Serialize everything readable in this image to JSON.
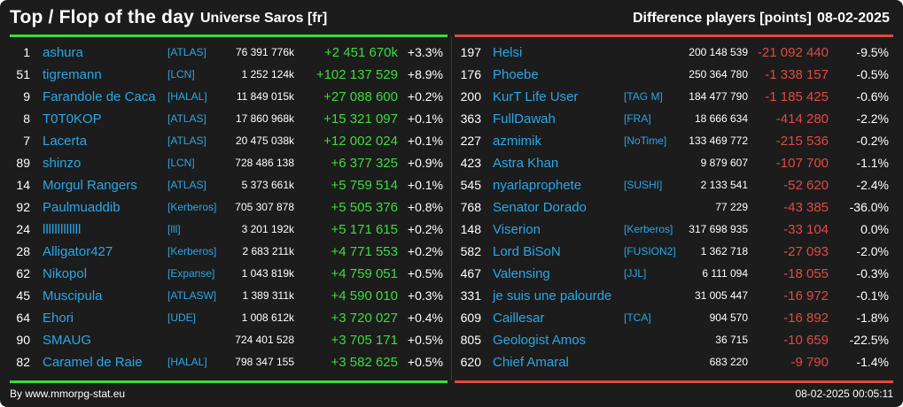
{
  "header": {
    "title": "Top / Flop of the day",
    "universe": "Universe Saros [fr]",
    "metric": "Difference players [points]",
    "date": "08-02-2025"
  },
  "colors": {
    "background": "#1c1c1c",
    "positive": "#3ddc3d",
    "negative": "#e04a42",
    "link": "#2aa7e6"
  },
  "top": [
    {
      "rank": "1",
      "name": "ashura",
      "alliance": "[ATLAS]",
      "points": "76 391 776k",
      "diff": "+2 451 670k",
      "pct": "+3.3%"
    },
    {
      "rank": "51",
      "name": "tigremann",
      "alliance": "[LCN]",
      "points": "1 252 124k",
      "diff": "+102 137 529",
      "pct": "+8.9%"
    },
    {
      "rank": "9",
      "name": "Farandole de Caca",
      "alliance": "[HALAL]",
      "points": "11 849 015k",
      "diff": "+27 088 600",
      "pct": "+0.2%"
    },
    {
      "rank": "8",
      "name": "T0T0KOP",
      "alliance": "[ATLAS]",
      "points": "17 860 968k",
      "diff": "+15 321 097",
      "pct": "+0.1%"
    },
    {
      "rank": "7",
      "name": "Lacerta",
      "alliance": "[ATLAS]",
      "points": "20 475 038k",
      "diff": "+12 002 024",
      "pct": "+0.1%"
    },
    {
      "rank": "89",
      "name": "shinzo",
      "alliance": "[LCN]",
      "points": "728 486 138",
      "diff": "+6 377 325",
      "pct": "+0.9%"
    },
    {
      "rank": "14",
      "name": "Morgul Rangers",
      "alliance": "[ATLAS]",
      "points": "5 373 661k",
      "diff": "+5 759 514",
      "pct": "+0.1%"
    },
    {
      "rank": "92",
      "name": "Paulmuaddib",
      "alliance": "[Kerberos]",
      "points": "705 307 878",
      "diff": "+5 505 376",
      "pct": "+0.8%"
    },
    {
      "rank": "24",
      "name": "lllllllllllll",
      "alliance": "[lll]",
      "points": "3 201 192k",
      "diff": "+5 171 615",
      "pct": "+0.2%"
    },
    {
      "rank": "28",
      "name": "Alligator427",
      "alliance": "[Kerberos]",
      "points": "2 683 211k",
      "diff": "+4 771 553",
      "pct": "+0.2%"
    },
    {
      "rank": "62",
      "name": "Nikopol",
      "alliance": "[Expanse]",
      "points": "1 043 819k",
      "diff": "+4 759 051",
      "pct": "+0.5%"
    },
    {
      "rank": "45",
      "name": "Muscipula",
      "alliance": "[ATLASW]",
      "points": "1 389 311k",
      "diff": "+4 590 010",
      "pct": "+0.3%"
    },
    {
      "rank": "64",
      "name": "Ehori",
      "alliance": "[UDE]",
      "points": "1 008 612k",
      "diff": "+3 720 027",
      "pct": "+0.4%"
    },
    {
      "rank": "90",
      "name": "SMAUG",
      "alliance": "",
      "points": "724 401 528",
      "diff": "+3 705 171",
      "pct": "+0.5%"
    },
    {
      "rank": "82",
      "name": "Caramel de Raie",
      "alliance": "[HALAL]",
      "points": "798 347 155",
      "diff": "+3 582 625",
      "pct": "+0.5%"
    }
  ],
  "flop": [
    {
      "rank": "197",
      "name": "Helsi",
      "alliance": "",
      "points": "200 148 539",
      "diff": "-21 092 440",
      "pct": "-9.5%"
    },
    {
      "rank": "176",
      "name": "Phoebe",
      "alliance": "",
      "points": "250 364 780",
      "diff": "-1 338 157",
      "pct": "-0.5%"
    },
    {
      "rank": "200",
      "name": "KurT Life User",
      "alliance": "[TAG M]",
      "points": "184 477 790",
      "diff": "-1 185 425",
      "pct": "-0.6%"
    },
    {
      "rank": "363",
      "name": "FullDawah",
      "alliance": "[FRA]",
      "points": "18 666 634",
      "diff": "-414 280",
      "pct": "-2.2%"
    },
    {
      "rank": "227",
      "name": "azmimik",
      "alliance": "[NoTime]",
      "points": "133 469 772",
      "diff": "-215 536",
      "pct": "-0.2%"
    },
    {
      "rank": "423",
      "name": "Astra Khan",
      "alliance": "",
      "points": "9 879 607",
      "diff": "-107 700",
      "pct": "-1.1%"
    },
    {
      "rank": "545",
      "name": "nyarlaprophete",
      "alliance": "[SUSHI]",
      "points": "2 133 541",
      "diff": "-52 620",
      "pct": "-2.4%"
    },
    {
      "rank": "768",
      "name": "Senator Dorado",
      "alliance": "",
      "points": "77 229",
      "diff": "-43 385",
      "pct": "-36.0%"
    },
    {
      "rank": "148",
      "name": "Viserion",
      "alliance": "[Kerberos]",
      "points": "317 698 935",
      "diff": "-33 104",
      "pct": "0.0%"
    },
    {
      "rank": "582",
      "name": "Lord BiSoN",
      "alliance": "[FUSION2]",
      "points": "1 362 718",
      "diff": "-27 093",
      "pct": "-2.0%"
    },
    {
      "rank": "467",
      "name": "Valensing",
      "alliance": "[JJL]",
      "points": "6 111 094",
      "diff": "-18 055",
      "pct": "-0.3%"
    },
    {
      "rank": "331",
      "name": "je suis une palourde",
      "alliance": "",
      "points": "31 005 447",
      "diff": "-16 972",
      "pct": "-0.1%"
    },
    {
      "rank": "609",
      "name": "Caillesar",
      "alliance": "[TCA]",
      "points": "904 570",
      "diff": "-16 892",
      "pct": "-1.8%"
    },
    {
      "rank": "805",
      "name": "Geologist Amos",
      "alliance": "",
      "points": "36 715",
      "diff": "-10 659",
      "pct": "-22.5%"
    },
    {
      "rank": "620",
      "name": "Chief Amaral",
      "alliance": "",
      "points": "683 220",
      "diff": "-9 790",
      "pct": "-1.4%"
    }
  ],
  "footer": {
    "source": "By www.mmorpg-stat.eu",
    "timestamp": "08-02-2025 00:05:11"
  }
}
